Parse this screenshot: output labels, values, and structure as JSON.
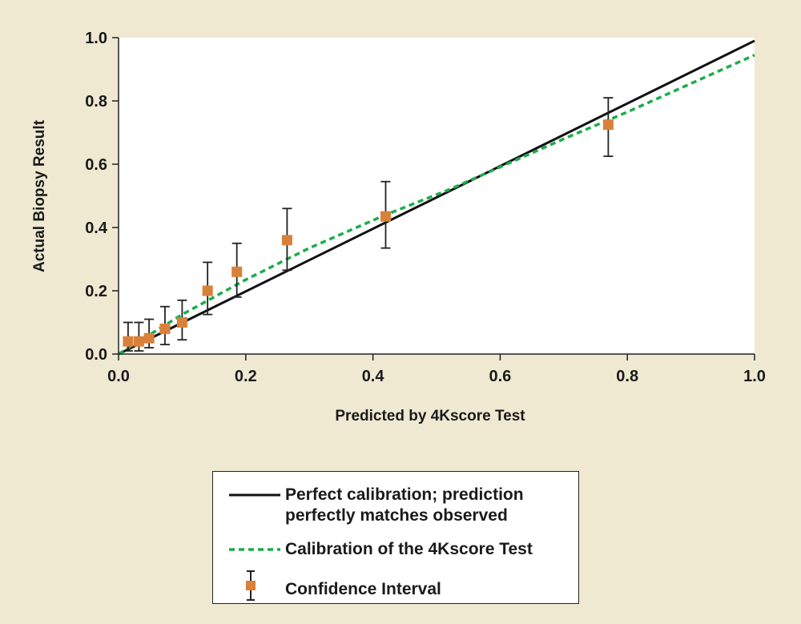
{
  "chart_data": {
    "type": "scatter",
    "xlabel": "Predicted by 4Kscore Test",
    "ylabel": "Actual Biopsy Result",
    "xlim": [
      0,
      1
    ],
    "ylim": [
      0,
      1
    ],
    "xticks": [
      "0.0",
      "0.2",
      "0.4",
      "0.6",
      "0.8",
      "1.0"
    ],
    "yticks": [
      "0.0",
      "0.2",
      "0.4",
      "0.6",
      "0.8",
      "1.0"
    ],
    "grid": false,
    "legend_placement": "bottom-center",
    "series": [
      {
        "name": "Perfect calibration; prediction perfectly matches observed",
        "type": "line",
        "color": "#111111",
        "style": "solid",
        "x": [
          0,
          1
        ],
        "y": [
          0,
          0.99
        ]
      },
      {
        "name": "Calibration of the 4Kscore Test",
        "type": "line",
        "color": "#1aad4b",
        "style": "dashed",
        "x": [
          0,
          0.1,
          0.2,
          0.3,
          0.42,
          0.52,
          0.7,
          0.8,
          1.0
        ],
        "y": [
          0,
          0.125,
          0.235,
          0.335,
          0.44,
          0.52,
          0.68,
          0.765,
          0.945
        ]
      },
      {
        "name": "Confidence Interval",
        "type": "scatter",
        "color": "#d9813a",
        "marker": "square",
        "x": [
          0.015,
          0.032,
          0.048,
          0.073,
          0.1,
          0.14,
          0.186,
          0.265,
          0.42,
          0.77
        ],
        "y": [
          0.04,
          0.04,
          0.05,
          0.08,
          0.1,
          0.2,
          0.26,
          0.36,
          0.435,
          0.725
        ],
        "ci_low": [
          0.01,
          0.01,
          0.02,
          0.03,
          0.045,
          0.125,
          0.18,
          0.265,
          0.335,
          0.625
        ],
        "ci_high": [
          0.1,
          0.1,
          0.11,
          0.15,
          0.17,
          0.29,
          0.35,
          0.46,
          0.545,
          0.81
        ]
      }
    ]
  },
  "legend": {
    "items": [
      "Perfect calibration; prediction perfectly matches observed",
      "Calibration of the 4Kscore Test",
      "Confidence Interval"
    ]
  }
}
